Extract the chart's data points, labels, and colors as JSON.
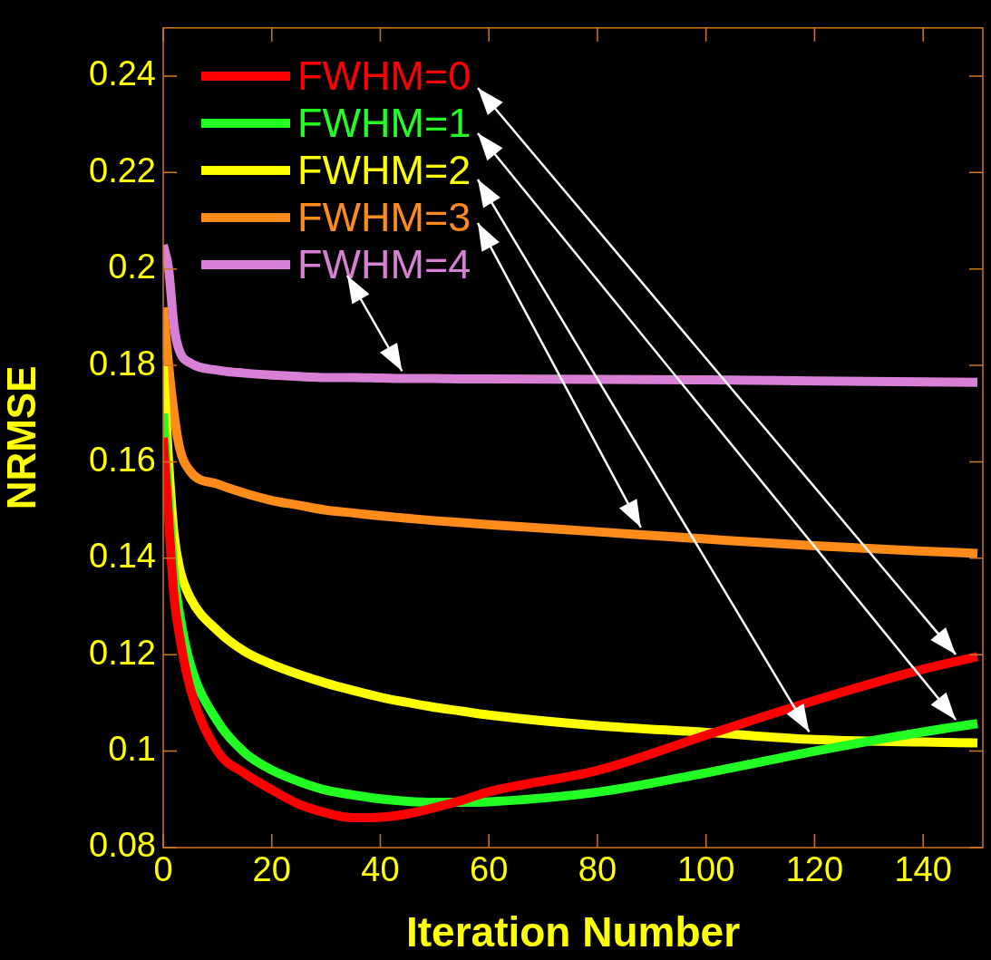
{
  "chart_data": {
    "type": "line",
    "xlabel": "Iteration Number",
    "ylabel": "NRMSE",
    "legend": "top left",
    "x": [
      0,
      1,
      2,
      3,
      5,
      10,
      15,
      20,
      25,
      30,
      35,
      40,
      45,
      50,
      55,
      60,
      80,
      100,
      120,
      140,
      150
    ],
    "xlim": [
      0,
      151
    ],
    "xticks": [
      0,
      20,
      40,
      60,
      80,
      100,
      120,
      140
    ],
    "ylim": [
      0.08,
      0.25
    ],
    "yticks": [
      0.08,
      0.1,
      0.12,
      0.14,
      0.16,
      0.18,
      0.2,
      0.22,
      0.24
    ],
    "series": [
      {
        "name": "FWHM=0",
        "color": "#ff0000",
        "values": [
          0.165,
          0.148,
          0.132,
          0.124,
          0.113,
          0.1,
          0.0954,
          0.092,
          0.089,
          0.0872,
          0.0862,
          0.0863,
          0.087,
          0.0883,
          0.0898,
          0.0916,
          0.096,
          0.1033,
          0.1105,
          0.117,
          0.1196
        ]
      },
      {
        "name": "FWHM=1",
        "color": "#22ff22",
        "values": [
          0.17,
          0.152,
          0.137,
          0.1286,
          0.118,
          0.1062,
          0.0997,
          0.0961,
          0.0937,
          0.0919,
          0.0909,
          0.0901,
          0.0896,
          0.0894,
          0.0894,
          0.0895,
          0.0915,
          0.0955,
          0.1,
          0.104,
          0.1057
        ]
      },
      {
        "name": "FWHM=2",
        "color": "#ffff00",
        "values": [
          0.18,
          0.16,
          0.145,
          0.138,
          0.1318,
          0.125,
          0.1207,
          0.118,
          0.1159,
          0.1141,
          0.1126,
          0.1112,
          0.1101,
          0.1091,
          0.1083,
          0.1075,
          0.1053,
          0.1039,
          0.1024,
          0.1019,
          0.1017
        ]
      },
      {
        "name": "FWHM=3",
        "color": "#ff8c1a",
        "values": [
          0.192,
          0.18,
          0.17,
          0.163,
          0.158,
          0.1554,
          0.1535,
          0.152,
          0.151,
          0.15,
          0.1494,
          0.1488,
          0.1483,
          0.1478,
          0.1474,
          0.147,
          0.1455,
          0.144,
          0.1426,
          0.1415,
          0.141
        ]
      },
      {
        "name": "FWHM=4",
        "color": "#d87fd6",
        "values": [
          0.205,
          0.2,
          0.188,
          0.183,
          0.1805,
          0.179,
          0.1784,
          0.178,
          0.1777,
          0.1775,
          0.1775,
          0.1774,
          0.1773,
          0.1773,
          0.1772,
          0.1772,
          0.1771,
          0.177,
          0.1768,
          0.1766,
          0.1765
        ]
      }
    ]
  }
}
